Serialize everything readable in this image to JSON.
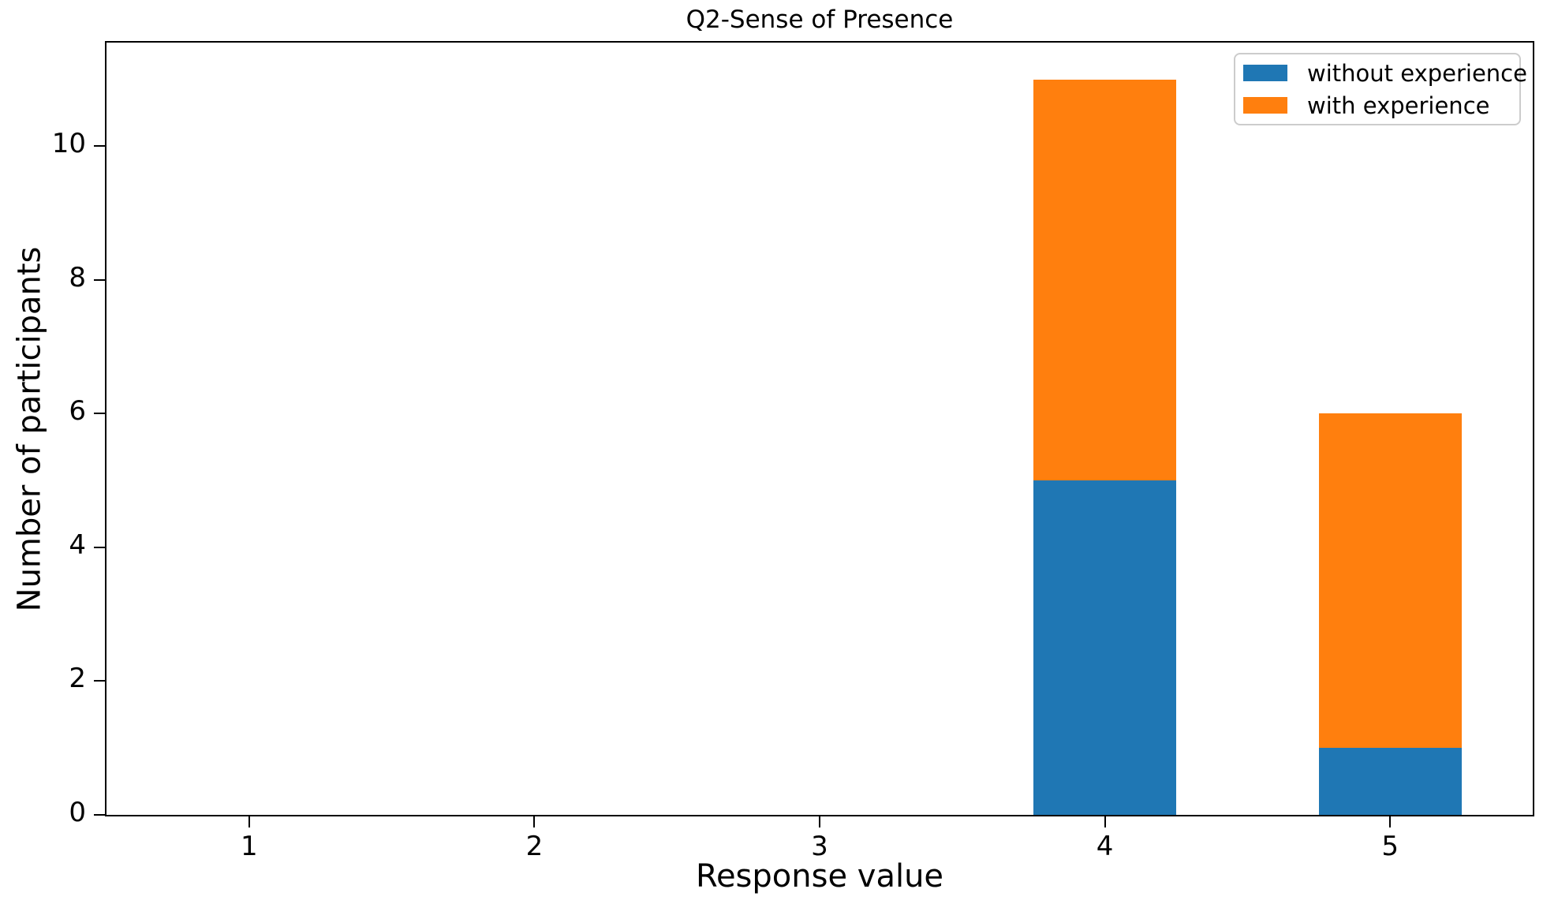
{
  "chart_data": {
    "type": "bar",
    "stacked": true,
    "title": "Q2-Sense of Presence",
    "xlabel": "Response value",
    "ylabel": "Number of participants",
    "categories": [
      1,
      2,
      3,
      4,
      5
    ],
    "xtick_labels": [
      "1",
      "2",
      "3",
      "4",
      "5"
    ],
    "series": [
      {
        "name": "without experience",
        "color": "#1f77b4",
        "values": [
          0,
          0,
          0,
          5,
          1
        ]
      },
      {
        "name": "with experience",
        "color": "#ff7f0e",
        "values": [
          0,
          0,
          0,
          6,
          5
        ]
      }
    ],
    "bar_width": 0.5,
    "xlim": [
      0.5,
      5.5
    ],
    "ylim": [
      0,
      11.55
    ],
    "yticks": [
      0,
      2,
      4,
      6,
      8,
      10
    ],
    "grid": false,
    "legend_position": "upper right",
    "spine_color": "#000000",
    "background_color": "#ffffff"
  }
}
